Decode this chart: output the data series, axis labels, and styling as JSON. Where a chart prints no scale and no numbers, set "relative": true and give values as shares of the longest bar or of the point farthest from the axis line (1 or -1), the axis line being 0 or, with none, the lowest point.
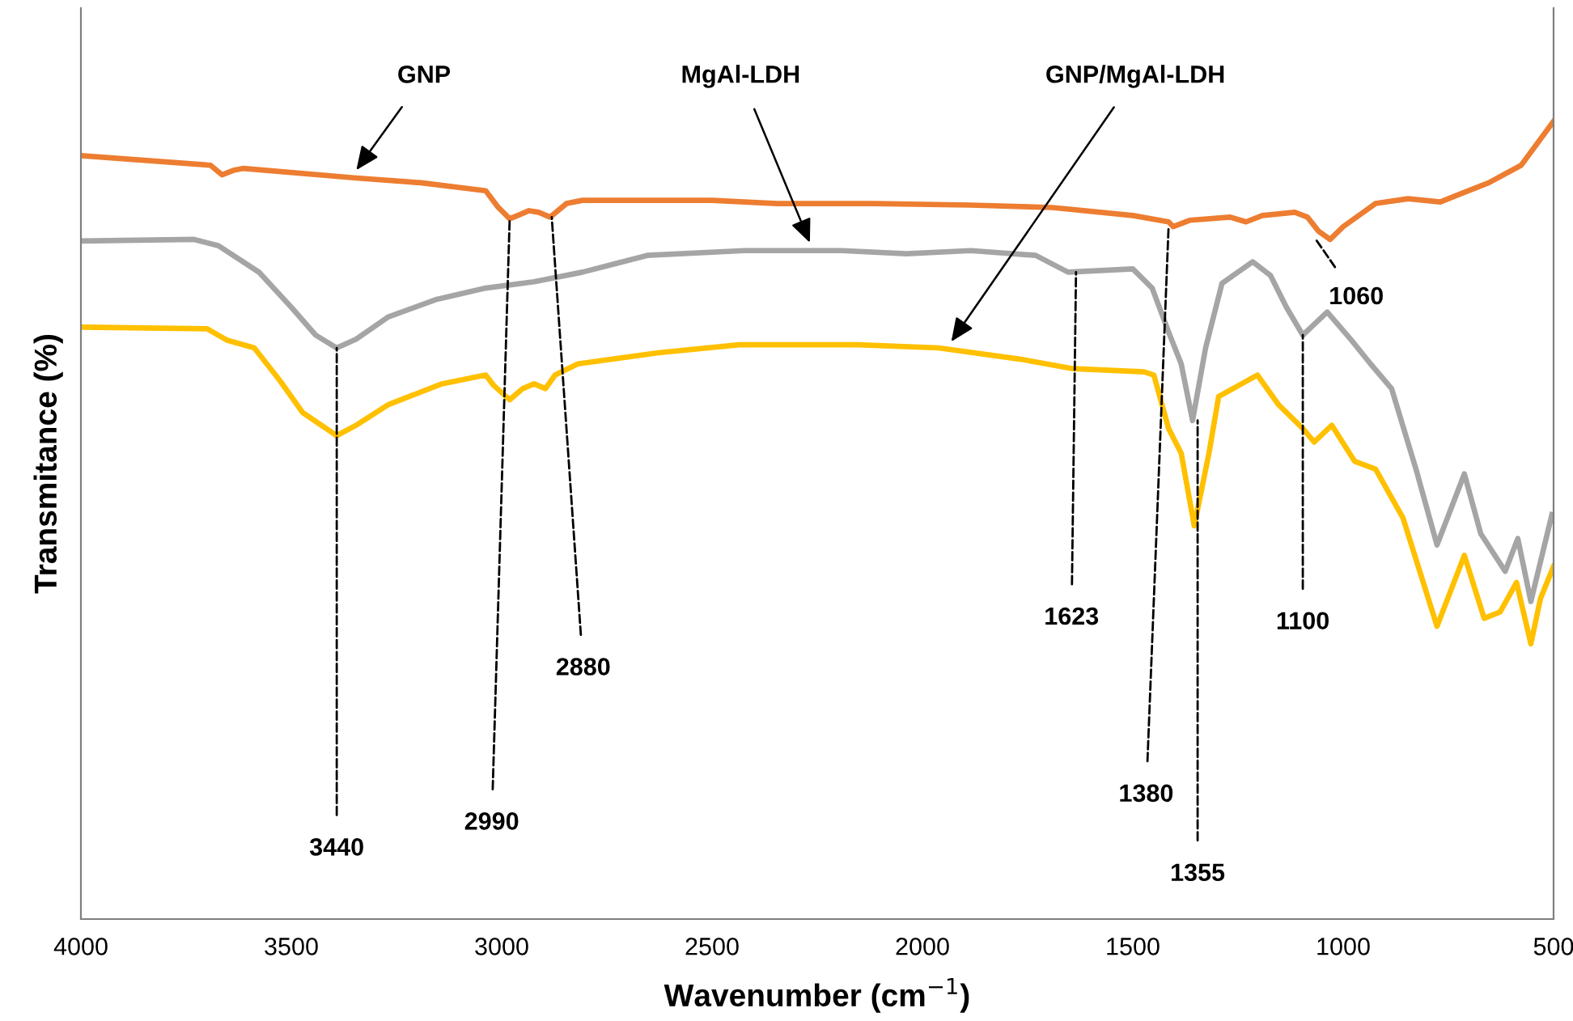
{
  "chart_data": {
    "type": "line",
    "relative": true,
    "xlabel": "Wavenumber (cm$^{−1}$)",
    "ylabel": "Transmitance (%)",
    "xlim": [
      4000,
      500
    ],
    "xticks": [
      4000,
      3500,
      3000,
      2500,
      2000,
      1500,
      1000,
      500
    ],
    "grid": false,
    "legend": false,
    "marker": "none",
    "line_style": "solid",
    "tick_labels": "x",
    "series": [
      {
        "name": "GNP",
        "color": "#ed7d31",
        "x": [
          4000,
          3692,
          3665,
          3635,
          3615,
          3346,
          3192,
          3038,
          3008,
          2981,
          2962,
          2935,
          2912,
          2885,
          2846,
          2808,
          2500,
          2346,
          2115,
          1885,
          1692,
          1500,
          1415,
          1404,
          1365,
          1269,
          1231,
          1192,
          1115,
          1085,
          1058,
          1031,
          1000,
          923,
          846,
          769,
          731,
          654,
          577,
          500
        ],
        "values": [
          0.957,
          0.945,
          0.933,
          0.939,
          0.941,
          0.929,
          0.923,
          0.913,
          0.892,
          0.878,
          0.882,
          0.888,
          0.886,
          0.88,
          0.897,
          0.901,
          0.901,
          0.897,
          0.897,
          0.895,
          0.892,
          0.882,
          0.874,
          0.868,
          0.876,
          0.88,
          0.874,
          0.882,
          0.886,
          0.88,
          0.862,
          0.852,
          0.868,
          0.897,
          0.903,
          0.899,
          0.907,
          0.923,
          0.945,
          1.0
        ]
      },
      {
        "name": "MgAl-LDH",
        "color": "#a5a5a5",
        "x": [
          4000,
          3731,
          3673,
          3577,
          3500,
          3442,
          3392,
          3346,
          3269,
          3154,
          3038,
          2923,
          2808,
          2654,
          2423,
          2192,
          2038,
          1885,
          1731,
          1654,
          1500,
          1454,
          1415,
          1385,
          1358,
          1327,
          1288,
          1215,
          1173,
          1135,
          1096,
          1038,
          981,
          935,
          885,
          827,
          777,
          712,
          673,
          615,
          585,
          554,
          504
        ],
        "values": [
          0.85,
          0.852,
          0.844,
          0.811,
          0.767,
          0.732,
          0.716,
          0.727,
          0.755,
          0.777,
          0.791,
          0.799,
          0.811,
          0.832,
          0.838,
          0.838,
          0.834,
          0.838,
          0.832,
          0.811,
          0.815,
          0.791,
          0.736,
          0.696,
          0.625,
          0.716,
          0.797,
          0.824,
          0.807,
          0.767,
          0.732,
          0.761,
          0.726,
          0.696,
          0.665,
          0.564,
          0.469,
          0.558,
          0.483,
          0.436,
          0.477,
          0.398,
          0.507
        ]
      },
      {
        "name": "GNP/MgAl-LDH",
        "color": "#ffc000",
        "x": [
          3992,
          3700,
          3654,
          3588,
          3527,
          3473,
          3392,
          3346,
          3269,
          3142,
          3038,
          3019,
          2981,
          2950,
          2923,
          2896,
          2873,
          2819,
          2627,
          2435,
          2346,
          2154,
          1962,
          1769,
          1642,
          1473,
          1450,
          1415,
          1385,
          1354,
          1319,
          1296,
          1204,
          1154,
          1096,
          1069,
          1027,
          973,
          923,
          858,
          777,
          712,
          665,
          627,
          588,
          554,
          531,
          500
        ],
        "values": [
          0.742,
          0.74,
          0.726,
          0.716,
          0.675,
          0.635,
          0.606,
          0.619,
          0.645,
          0.671,
          0.682,
          0.669,
          0.651,
          0.665,
          0.671,
          0.665,
          0.682,
          0.696,
          0.71,
          0.72,
          0.72,
          0.72,
          0.716,
          0.702,
          0.69,
          0.686,
          0.682,
          0.615,
          0.584,
          0.493,
          0.584,
          0.655,
          0.682,
          0.645,
          0.615,
          0.598,
          0.619,
          0.574,
          0.564,
          0.503,
          0.367,
          0.456,
          0.377,
          0.385,
          0.422,
          0.345,
          0.402,
          0.442
        ]
      }
    ],
    "annotations": [
      {
        "text": "3440",
        "x": 3392,
        "y": 0.716
      },
      {
        "text": "2990",
        "x": 2981,
        "y": 0.878
      },
      {
        "text": "2880",
        "x": 2881,
        "y": 0.88
      },
      {
        "text": "1623",
        "x": 1635,
        "y": 0.811
      },
      {
        "text": "1380",
        "x": 1415,
        "y": 0.868
      },
      {
        "text": "1355",
        "x": 1346,
        "y": 0.625
      },
      {
        "text": "1100",
        "x": 1096,
        "y": 0.732
      },
      {
        "text": "1060",
        "x": 1065,
        "y": 0.852
      }
    ]
  }
}
